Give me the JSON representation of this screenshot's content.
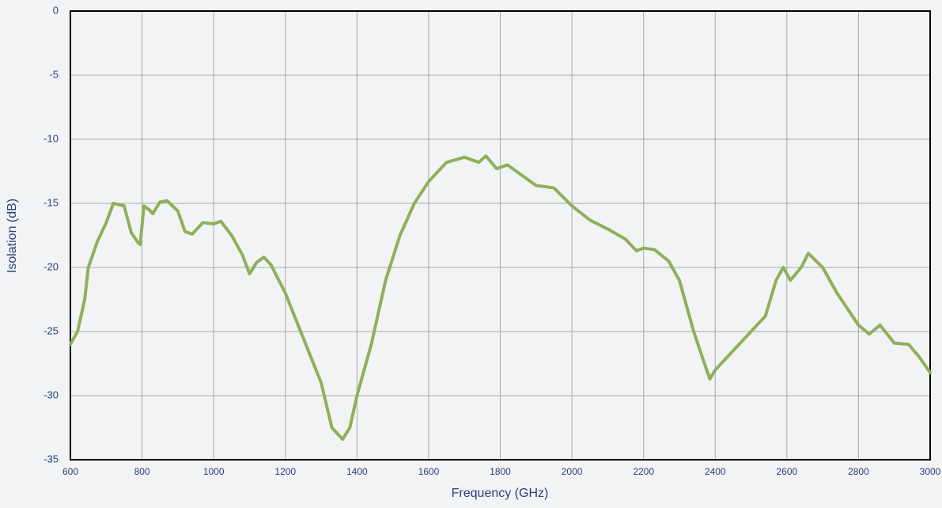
{
  "chart_data": {
    "type": "line",
    "x_label": "Frequency (GHz)",
    "y_label": "Isolation (dB)",
    "xlim": [
      600,
      3000
    ],
    "ylim": [
      -35,
      0
    ],
    "xticks": [
      600,
      800,
      1000,
      1200,
      1400,
      1600,
      1800,
      2000,
      2200,
      2400,
      2600,
      2800,
      3000
    ],
    "yticks": [
      0,
      -5,
      -10,
      -15,
      -20,
      -25,
      -30,
      -35
    ],
    "grid": true,
    "x": [
      600,
      620,
      640,
      650,
      675,
      700,
      720,
      750,
      770,
      790,
      795,
      805,
      820,
      830,
      850,
      870,
      900,
      920,
      940,
      970,
      1000,
      1020,
      1050,
      1080,
      1100,
      1120,
      1140,
      1160,
      1200,
      1250,
      1300,
      1330,
      1360,
      1380,
      1400,
      1440,
      1480,
      1520,
      1560,
      1600,
      1650,
      1700,
      1740,
      1760,
      1790,
      1820,
      1850,
      1900,
      1950,
      2000,
      2050,
      2100,
      2150,
      2180,
      2200,
      2230,
      2270,
      2300,
      2340,
      2370,
      2385,
      2400,
      2450,
      2500,
      2540,
      2570,
      2590,
      2610,
      2640,
      2660,
      2700,
      2740,
      2800,
      2830,
      2860,
      2900,
      2940,
      2970,
      3000
    ],
    "series": [
      {
        "name": "Isolation",
        "color": "#8fb05a",
        "values": [
          -26,
          -25,
          -22.5,
          -20,
          -18,
          -16.5,
          -15,
          -15.2,
          -17.3,
          -18.1,
          -18.2,
          -15.2,
          -15.5,
          -15.8,
          -14.9,
          -14.8,
          -15.6,
          -17.2,
          -17.4,
          -16.5,
          -16.6,
          -16.4,
          -17.5,
          -19,
          -20.5,
          -19.6,
          -19.2,
          -19.8,
          -22,
          -25.5,
          -29,
          -32.5,
          -33.4,
          -32.5,
          -30,
          -26,
          -21,
          -17.5,
          -15,
          -13.3,
          -11.8,
          -11.4,
          -11.8,
          -11.3,
          -12.3,
          -12,
          -12.6,
          -13.6,
          -13.8,
          -15.2,
          -16.3,
          -17,
          -17.8,
          -18.7,
          -18.5,
          -18.6,
          -19.5,
          -21,
          -25,
          -27.5,
          -28.7,
          -28,
          -26.5,
          -25,
          -23.8,
          -21,
          -20,
          -21,
          -20,
          -18.9,
          -20,
          -22,
          -24.5,
          -25.2,
          -24.5,
          -25.9,
          -26,
          -27,
          -28.2
        ]
      }
    ]
  }
}
